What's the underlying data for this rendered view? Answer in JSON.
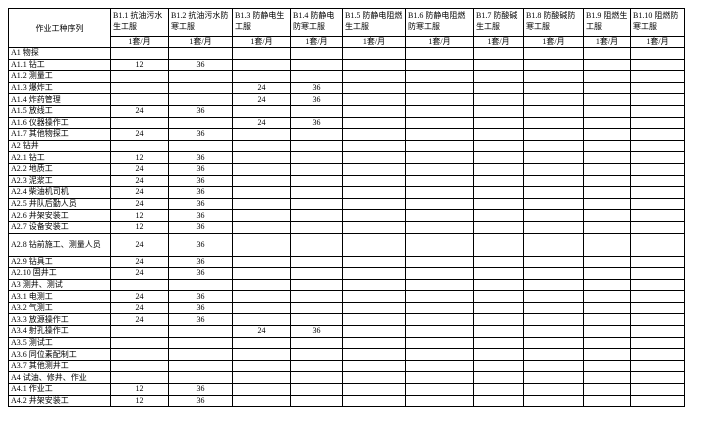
{
  "table": {
    "corner": "作业工种序列",
    "columns": [
      "B1.1 抗油污水生工服",
      "B1.2 抗油污水防寒工服",
      "B1.3 防静电生工服",
      "B1.4 防静电防寒工服",
      "B1.5 防静电阻燃生工服",
      "B1.6 防静电阻燃防寒工服",
      "B1.7 防酸碱生工服",
      "B1.8 防酸碱防寒工服",
      "B1.9 阻燃生工服",
      "B1.10 阻燃防寒工服"
    ],
    "units": [
      "1套/月",
      "1套/月",
      "1套/月",
      "1套/月",
      "1套/月",
      "1套/月",
      "1套/月",
      "1套/月",
      "1套/月",
      "1套/月"
    ],
    "rows": [
      {
        "label": "A1 物探",
        "cells": [
          null,
          null,
          null,
          null,
          null,
          null,
          null,
          null,
          null,
          null
        ]
      },
      {
        "label": "A1.1 钻工",
        "cells": [
          12,
          36,
          null,
          null,
          null,
          null,
          null,
          null,
          null,
          null
        ]
      },
      {
        "label": "A1.2 测量工",
        "cells": [
          null,
          null,
          null,
          null,
          null,
          null,
          null,
          null,
          null,
          null
        ]
      },
      {
        "label": "A1.3 爆炸工",
        "cells": [
          null,
          null,
          24,
          36,
          null,
          null,
          null,
          null,
          null,
          null
        ]
      },
      {
        "label": "A1.4 炸药管理",
        "cells": [
          null,
          null,
          24,
          36,
          null,
          null,
          null,
          null,
          null,
          null
        ]
      },
      {
        "label": "A1.5 放线工",
        "cells": [
          24,
          36,
          null,
          null,
          null,
          null,
          null,
          null,
          null,
          null
        ]
      },
      {
        "label": "A1.6 仪器操作工",
        "cells": [
          null,
          null,
          24,
          36,
          null,
          null,
          null,
          null,
          null,
          null
        ]
      },
      {
        "label": "A1.7 其他物探工",
        "cells": [
          24,
          36,
          null,
          null,
          null,
          null,
          null,
          null,
          null,
          null
        ]
      },
      {
        "label": "A2 钻井",
        "cells": [
          null,
          null,
          null,
          null,
          null,
          null,
          null,
          null,
          null,
          null
        ]
      },
      {
        "label": "A2.1 钻工",
        "cells": [
          12,
          36,
          null,
          null,
          null,
          null,
          null,
          null,
          null,
          null
        ]
      },
      {
        "label": "A2.2 地质工",
        "cells": [
          24,
          36,
          null,
          null,
          null,
          null,
          null,
          null,
          null,
          null
        ]
      },
      {
        "label": "A2.3 泥浆工",
        "cells": [
          24,
          36,
          null,
          null,
          null,
          null,
          null,
          null,
          null,
          null
        ]
      },
      {
        "label": "A2.4 柴油机司机",
        "cells": [
          24,
          36,
          null,
          null,
          null,
          null,
          null,
          null,
          null,
          null
        ]
      },
      {
        "label": "A2.5 井队后勤人员",
        "cells": [
          24,
          36,
          null,
          null,
          null,
          null,
          null,
          null,
          null,
          null
        ]
      },
      {
        "label": "A2.6 井架安装工",
        "cells": [
          12,
          36,
          null,
          null,
          null,
          null,
          null,
          null,
          null,
          null
        ]
      },
      {
        "label": "A2.7 设备安装工",
        "cells": [
          12,
          36,
          null,
          null,
          null,
          null,
          null,
          null,
          null,
          null
        ]
      },
      {
        "label": "A2.8 钻前施工、测量人员",
        "cells": [
          24,
          36,
          null,
          null,
          null,
          null,
          null,
          null,
          null,
          null
        ]
      },
      {
        "label": "A2.9 钻具工",
        "cells": [
          24,
          36,
          null,
          null,
          null,
          null,
          null,
          null,
          null,
          null
        ]
      },
      {
        "label": "A2.10 固井工",
        "cells": [
          24,
          36,
          null,
          null,
          null,
          null,
          null,
          null,
          null,
          null
        ]
      },
      {
        "label": "A3 测井、测试",
        "cells": [
          null,
          null,
          null,
          null,
          null,
          null,
          null,
          null,
          null,
          null
        ]
      },
      {
        "label": "A3.1 电测工",
        "cells": [
          24,
          36,
          null,
          null,
          null,
          null,
          null,
          null,
          null,
          null
        ]
      },
      {
        "label": "A3.2 气测工",
        "cells": [
          24,
          36,
          null,
          null,
          null,
          null,
          null,
          null,
          null,
          null
        ]
      },
      {
        "label": "A3.3 放源操作工",
        "cells": [
          24,
          36,
          null,
          null,
          null,
          null,
          null,
          null,
          null,
          null
        ]
      },
      {
        "label": "A3.4 射孔操作工",
        "cells": [
          null,
          null,
          24,
          36,
          null,
          null,
          null,
          null,
          null,
          null
        ]
      },
      {
        "label": "A3.5 测试工",
        "cells": [
          null,
          null,
          null,
          null,
          null,
          null,
          null,
          null,
          null,
          null
        ]
      },
      {
        "label": "A3.6 同位素配制工",
        "cells": [
          null,
          null,
          null,
          null,
          null,
          null,
          null,
          null,
          null,
          null
        ]
      },
      {
        "label": "A3.7 其他测井工",
        "cells": [
          null,
          null,
          null,
          null,
          null,
          null,
          null,
          null,
          null,
          null
        ]
      },
      {
        "label": "A4 试油、修井、作业",
        "cells": [
          null,
          null,
          null,
          null,
          null,
          null,
          null,
          null,
          null,
          null
        ]
      },
      {
        "label": "A4.1 作业工",
        "cells": [
          12,
          36,
          null,
          null,
          null,
          null,
          null,
          null,
          null,
          null
        ]
      },
      {
        "label": "A4.2 井架安装工",
        "cells": [
          12,
          36,
          null,
          null,
          null,
          null,
          null,
          null,
          null,
          null
        ]
      }
    ]
  }
}
